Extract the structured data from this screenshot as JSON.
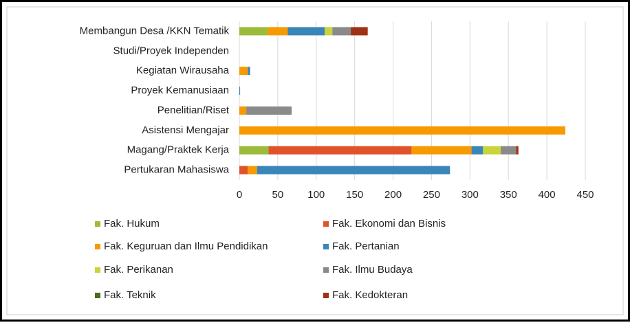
{
  "chart_data": {
    "type": "stacked_barh",
    "categories": [
      "Membangun Desa /KKN Tematik",
      "Studi/Proyek Independen",
      "Kegiatan Wirausaha",
      "Proyek Kemanusiaan",
      "Penelitian/Riset",
      "Asistensi Mengajar",
      "Magang/Praktek  Kerja",
      "Pertukaran Mahasiswa"
    ],
    "series": [
      {
        "name": "Fak. Hukum",
        "color": "#9bbb3b",
        "values": [
          37,
          0,
          0,
          0,
          0,
          0,
          38,
          0
        ]
      },
      {
        "name": "Fak. Ekonomi dan Bisnis",
        "color": "#e0532a",
        "values": [
          0,
          0,
          0,
          0,
          0,
          0,
          186,
          11
        ]
      },
      {
        "name": "Fak. Keguruan dan Ilmu Pendidikan",
        "color": "#f79a00",
        "values": [
          26,
          0,
          11,
          0,
          9,
          424,
          78,
          12
        ]
      },
      {
        "name": "Fak. Pertanian",
        "color": "#3a86b8",
        "values": [
          48,
          0,
          3,
          1,
          0,
          0,
          15,
          251
        ]
      },
      {
        "name": "Fak. Perikanan",
        "color": "#c9d43a",
        "values": [
          10,
          0,
          0,
          0,
          0,
          0,
          23,
          0
        ]
      },
      {
        "name": "Fak. Ilmu Budaya",
        "color": "#8a8a8a",
        "values": [
          24,
          0,
          0,
          0,
          59,
          0,
          20,
          0
        ]
      },
      {
        "name": "Fak. Teknik",
        "color": "#4e6b1e",
        "values": [
          0,
          0,
          0,
          0,
          0,
          0,
          0,
          0
        ]
      },
      {
        "name": "Fak. Kedokteran",
        "color": "#9e3215",
        "values": [
          22,
          0,
          0,
          0,
          0,
          0,
          3,
          0
        ]
      }
    ],
    "xlim": [
      0,
      450
    ],
    "xticks": [
      0,
      50,
      100,
      150,
      200,
      250,
      300,
      350,
      400,
      450
    ],
    "grid": true,
    "legend": "bottom"
  }
}
